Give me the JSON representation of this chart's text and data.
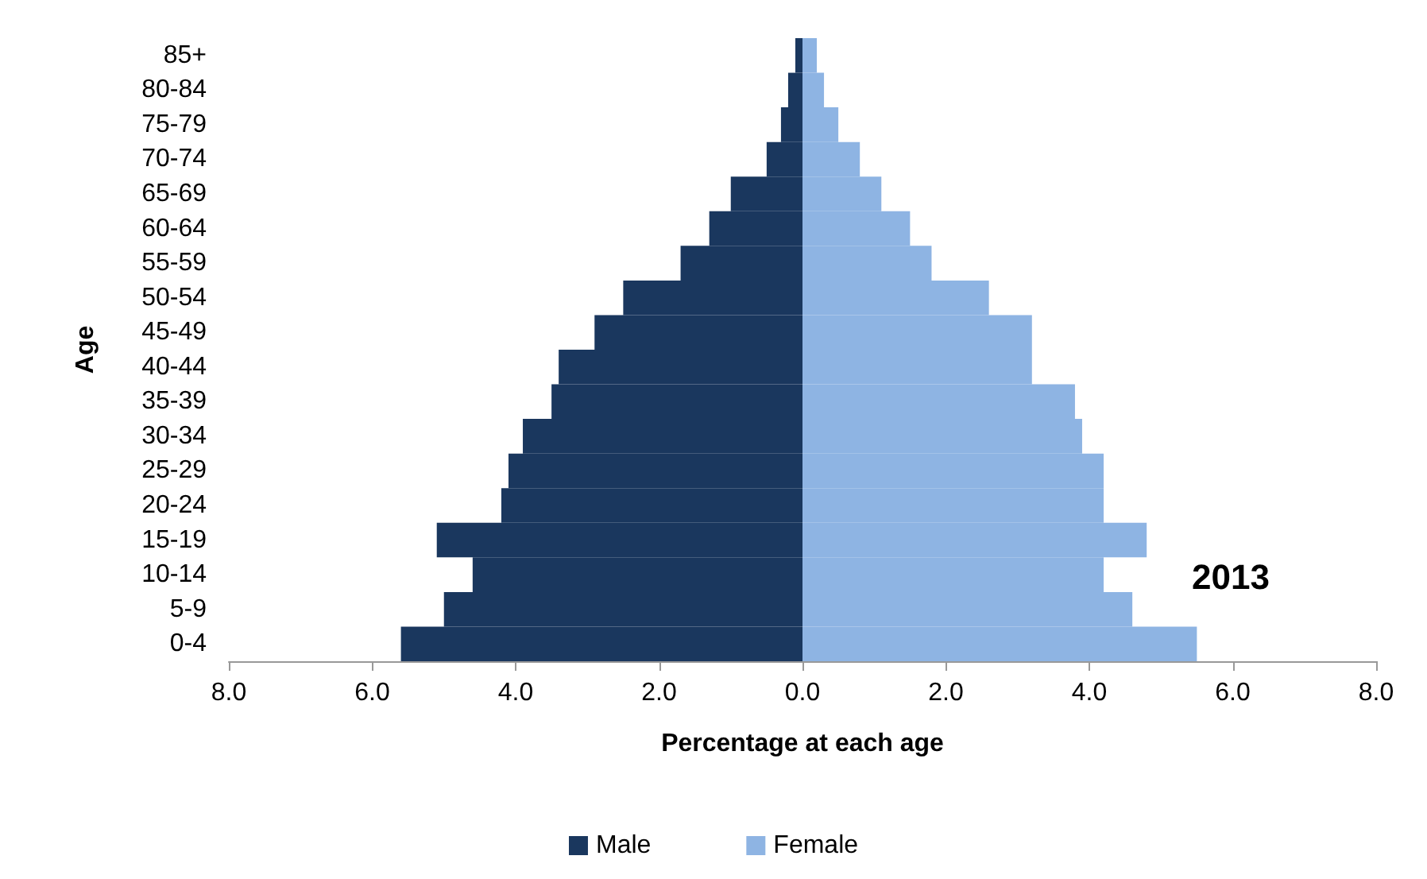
{
  "chart_data": {
    "type": "bar",
    "orientation": "horizontal",
    "xlabel": "Percentage at each age",
    "ylabel": "Age",
    "categories": [
      "85+",
      "80-84",
      "75-79",
      "70-74",
      "65-69",
      "60-64",
      "55-59",
      "50-54",
      "45-49",
      "40-44",
      "35-39",
      "30-34",
      "25-29",
      "20-24",
      "15-19",
      "10-14",
      "5-9",
      "0-4"
    ],
    "series": [
      {
        "name": "Male",
        "color": "#1a375e",
        "values": [
          -0.1,
          -0.2,
          -0.3,
          -0.5,
          -1.0,
          -1.3,
          -1.7,
          -2.5,
          -2.9,
          -3.4,
          -3.5,
          -3.9,
          -4.1,
          -4.2,
          -5.1,
          -4.6,
          -5.0,
          -5.6
        ]
      },
      {
        "name": "Female",
        "color": "#8eb4e3",
        "values": [
          0.2,
          0.3,
          0.5,
          0.8,
          1.1,
          1.5,
          1.8,
          2.6,
          3.2,
          3.2,
          3.8,
          3.9,
          4.2,
          4.2,
          4.8,
          4.2,
          4.6,
          5.5
        ]
      }
    ],
    "xlim": [
      -8,
      8
    ],
    "xticks": [
      {
        "value": -8,
        "label": "8.0"
      },
      {
        "value": -6,
        "label": "6.0"
      },
      {
        "value": -4,
        "label": "4.0"
      },
      {
        "value": -2,
        "label": "2.0"
      },
      {
        "value": 0,
        "label": "0.0"
      },
      {
        "value": 2,
        "label": "2.0"
      },
      {
        "value": 4,
        "label": "4.0"
      },
      {
        "value": 6,
        "label": "6.0"
      },
      {
        "value": 8,
        "label": "8.0"
      }
    ],
    "annotations": [
      "2013"
    ],
    "stacked": true,
    "grid": false,
    "legend": "bottom"
  }
}
